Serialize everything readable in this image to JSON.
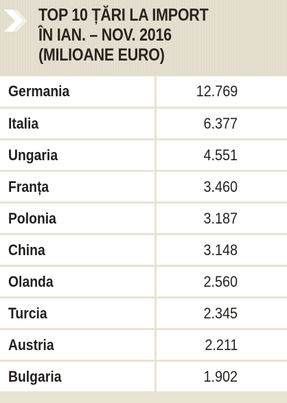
{
  "header": {
    "title_lines": [
      "TOP 10 ȚĂRI LA IMPORT",
      "ÎN IAN. – NOV. 2016",
      "(MILIOANE EURO)"
    ],
    "icon": "double-chevron-right-icon"
  },
  "colors": {
    "background": "#e9e3d3",
    "row_background": "#ffffff",
    "text": "#231f1c",
    "chevron": "#ffffff"
  },
  "table": {
    "rows": [
      {
        "country": "Germania",
        "value": "12.769"
      },
      {
        "country": "Italia",
        "value": "6.377"
      },
      {
        "country": "Ungaria",
        "value": "4.551"
      },
      {
        "country": "Franța",
        "value": "3.460"
      },
      {
        "country": "Polonia",
        "value": "3.187"
      },
      {
        "country": "China",
        "value": "3.148"
      },
      {
        "country": "Olanda",
        "value": "2.560"
      },
      {
        "country": "Turcia",
        "value": "2.345"
      },
      {
        "country": "Austria",
        "value": "2.211"
      },
      {
        "country": "Bulgaria",
        "value": "1.902"
      }
    ]
  }
}
